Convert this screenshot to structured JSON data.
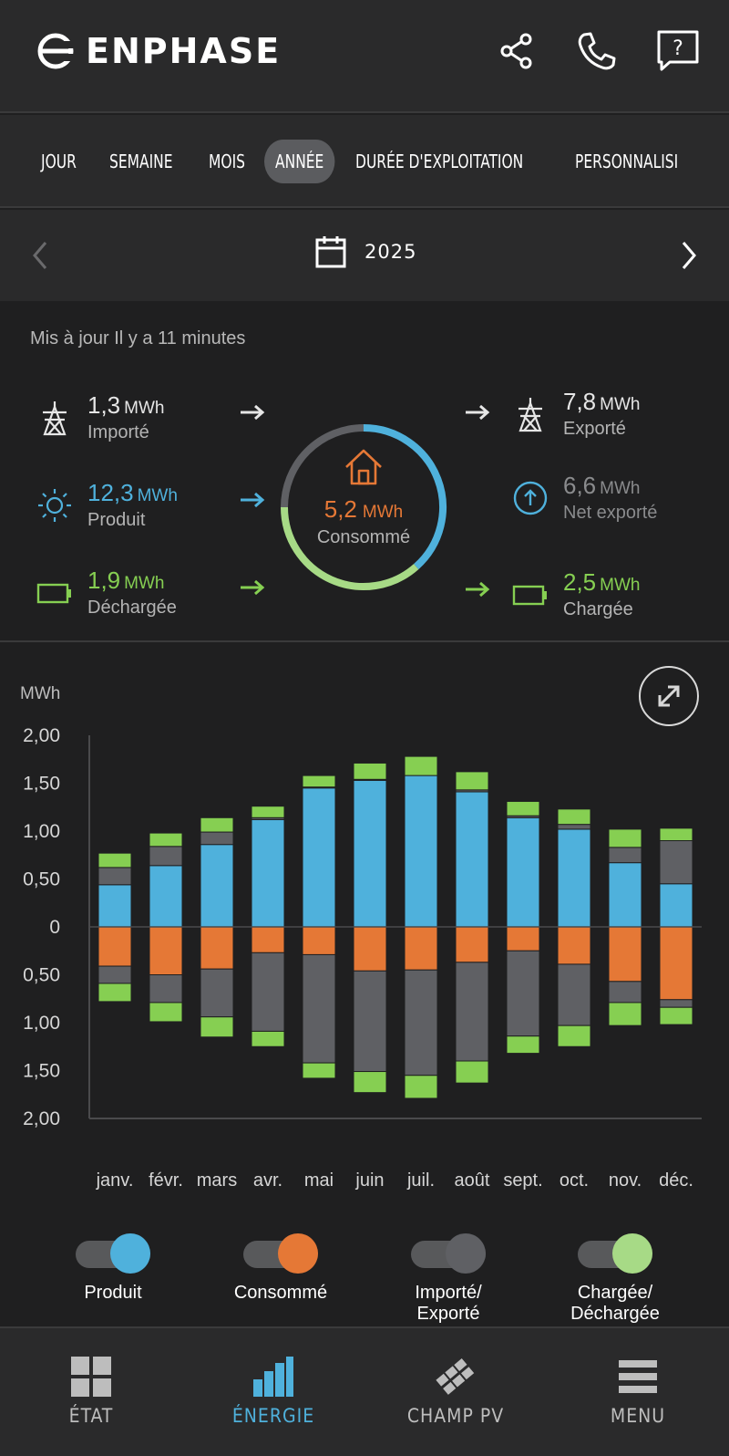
{
  "header": {
    "brand": "ENPHASE"
  },
  "tabs": [
    {
      "label": "JOUR",
      "active": false
    },
    {
      "label": "SEMAINE",
      "active": false
    },
    {
      "label": "MOIS",
      "active": false
    },
    {
      "label": "ANNÉE",
      "active": true
    },
    {
      "label": "DURÉE D'EXPLOITATION",
      "active": false
    },
    {
      "label": "PERSONNALISI",
      "active": false
    }
  ],
  "datenav": {
    "date": "2025"
  },
  "summary": {
    "updated": "Mis à jour Il y a 11 minutes",
    "imported": {
      "value": "1,3",
      "unit": "MWh",
      "label": "Importé"
    },
    "produced": {
      "value": "12,3",
      "unit": "MWh",
      "label": "Produit"
    },
    "discharged": {
      "value": "1,9",
      "unit": "MWh",
      "label": "Déchargée"
    },
    "consumed": {
      "value": "5,2",
      "unit": "MWh",
      "label": "Consommé"
    },
    "exported": {
      "value": "7,8",
      "unit": "MWh",
      "label": "Exporté"
    },
    "net_exported": {
      "value": "6,6",
      "unit": "MWh",
      "label": "Net exporté"
    },
    "charged": {
      "value": "2,5",
      "unit": "MWh",
      "label": "Chargée"
    }
  },
  "colors": {
    "produced": "#4fb1dc",
    "consumed": "#e57836",
    "grid": "#5f6064",
    "battery": "#86cf52"
  },
  "chart_data": {
    "type": "bar",
    "stacked": true,
    "ylabel": "MWh",
    "ylim": [
      -2.0,
      2.0
    ],
    "yticks": [
      {
        "v": 2.0,
        "label": "2,00"
      },
      {
        "v": 1.5,
        "label": "1,50"
      },
      {
        "v": 1.0,
        "label": "1,00"
      },
      {
        "v": 0.5,
        "label": "0,50"
      },
      {
        "v": 0,
        "label": "0"
      },
      {
        "v": -0.5,
        "label": "0,50"
      },
      {
        "v": -1.0,
        "label": "1,00"
      },
      {
        "v": -1.5,
        "label": "1,50"
      },
      {
        "v": -2.0,
        "label": "2,00"
      }
    ],
    "categories": [
      "janv.",
      "févr.",
      "mars",
      "avr.",
      "mai",
      "juin",
      "juil.",
      "août",
      "sept.",
      "oct.",
      "nov.",
      "déc."
    ],
    "series": [
      {
        "name": "Produit",
        "color": "#4fb1dc",
        "values": [
          0.44,
          0.64,
          0.86,
          1.12,
          1.45,
          1.53,
          1.58,
          1.41,
          1.14,
          1.02,
          0.67,
          0.45
        ]
      },
      {
        "name": "Importé",
        "color": "#5f6064",
        "values": [
          0.18,
          0.2,
          0.13,
          0.02,
          0.01,
          0.01,
          0.0,
          0.02,
          0.02,
          0.05,
          0.16,
          0.45
        ]
      },
      {
        "name": "Déchargée",
        "color": "#86cf52",
        "values": [
          0.15,
          0.14,
          0.15,
          0.12,
          0.12,
          0.17,
          0.2,
          0.19,
          0.15,
          0.16,
          0.19,
          0.13
        ]
      },
      {
        "name": "Consommé",
        "color": "#e57836",
        "values": [
          -0.41,
          -0.5,
          -0.44,
          -0.27,
          -0.29,
          -0.46,
          -0.45,
          -0.37,
          -0.25,
          -0.39,
          -0.57,
          -0.76
        ]
      },
      {
        "name": "Exporté",
        "color": "#5f6064",
        "values": [
          -0.18,
          -0.29,
          -0.5,
          -0.82,
          -1.13,
          -1.05,
          -1.1,
          -1.03,
          -0.89,
          -0.64,
          -0.22,
          -0.08
        ]
      },
      {
        "name": "Chargée",
        "color": "#86cf52",
        "values": [
          -0.19,
          -0.2,
          -0.21,
          -0.16,
          -0.16,
          -0.22,
          -0.24,
          -0.23,
          -0.18,
          -0.22,
          -0.24,
          -0.18
        ]
      }
    ],
    "grid": false
  },
  "legend": [
    {
      "label": "Produit",
      "on": true,
      "color": "#4fb1dc"
    },
    {
      "label": "Consommé",
      "on": true,
      "color": "#e57836"
    },
    {
      "label": "Importé/ Exporté",
      "on": true,
      "color": "#5f6064"
    },
    {
      "label": "Chargée/ Déchargée",
      "on": true,
      "color": "#a7da86"
    }
  ],
  "bottomnav": [
    {
      "label": "ÉTAT",
      "active": false,
      "icon": "grid-icon"
    },
    {
      "label": "ÉNERGIE",
      "active": true,
      "icon": "bar-chart-icon"
    },
    {
      "label": "CHAMP PV",
      "active": false,
      "icon": "solar-panel-icon"
    },
    {
      "label": "MENU",
      "active": false,
      "icon": "menu-icon"
    }
  ]
}
